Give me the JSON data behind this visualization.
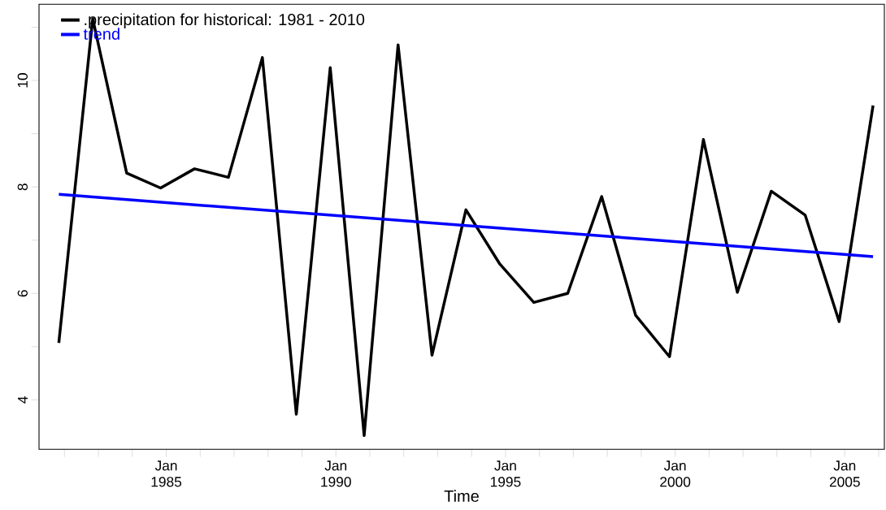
{
  "chart_data": {
    "type": "line",
    "xlabel": "Time",
    "series": [
      {
        "name": ".precipitation for historical: 1981 - 2010",
        "color": "#000000",
        "x": [
          "1981-11",
          "1982-11",
          "1983-11",
          "1984-11",
          "1985-11",
          "1986-11",
          "1987-11",
          "1988-11",
          "1989-11",
          "1990-11",
          "1991-11",
          "1992-11",
          "1993-11",
          "1994-11",
          "1995-11",
          "1996-11",
          "1997-11",
          "1998-11",
          "1999-11",
          "2000-11",
          "2001-11",
          "2002-11",
          "2003-11",
          "2004-11",
          "2005-11"
        ],
        "values": [
          5.07,
          11.16,
          8.26,
          7.98,
          8.34,
          8.18,
          10.43,
          3.73,
          10.24,
          3.33,
          10.67,
          4.84,
          7.57,
          6.55,
          5.83,
          6.0,
          7.82,
          5.59,
          4.81,
          8.89,
          6.02,
          7.92,
          7.47,
          5.47,
          9.53
        ]
      },
      {
        "name": "trend",
        "color": "#0000ff",
        "x": [
          "1981-11",
          "2005-11"
        ],
        "values": [
          7.86,
          6.69
        ]
      }
    ],
    "xlim": [
      "1981-04",
      "2006-03"
    ],
    "ylim": [
      3.07,
      11.43
    ],
    "xticks": [
      {
        "value": "1982-01",
        "label": null
      },
      {
        "value": "1983-01",
        "label": null
      },
      {
        "value": "1984-01",
        "label": null
      },
      {
        "value": "1985-01",
        "label": "Jan 1985"
      },
      {
        "value": "1986-01",
        "label": null
      },
      {
        "value": "1987-01",
        "label": null
      },
      {
        "value": "1988-01",
        "label": null
      },
      {
        "value": "1989-01",
        "label": null
      },
      {
        "value": "1990-01",
        "label": "Jan 1990"
      },
      {
        "value": "1991-01",
        "label": null
      },
      {
        "value": "1992-01",
        "label": null
      },
      {
        "value": "1993-01",
        "label": null
      },
      {
        "value": "1994-01",
        "label": null
      },
      {
        "value": "1995-01",
        "label": "Jan 1995"
      },
      {
        "value": "1996-01",
        "label": null
      },
      {
        "value": "1997-01",
        "label": null
      },
      {
        "value": "1998-01",
        "label": null
      },
      {
        "value": "1999-01",
        "label": null
      },
      {
        "value": "2000-01",
        "label": "Jan 2000"
      },
      {
        "value": "2001-01",
        "label": null
      },
      {
        "value": "2002-01",
        "label": null
      },
      {
        "value": "2003-01",
        "label": null
      },
      {
        "value": "2004-01",
        "label": null
      },
      {
        "value": "2005-01",
        "label": "Jan 2005"
      },
      {
        "value": "2006-01",
        "label": null
      }
    ],
    "yticks": [
      4,
      {
        "value": 5,
        "label": null
      },
      6,
      {
        "value": 7,
        "label": null
      },
      8,
      {
        "value": 9,
        "label": null
      },
      10,
      {
        "value": 11,
        "label": null
      }
    ],
    "legend": "top left",
    "grid": false,
    "marker": "none",
    "line_style": "solid"
  }
}
